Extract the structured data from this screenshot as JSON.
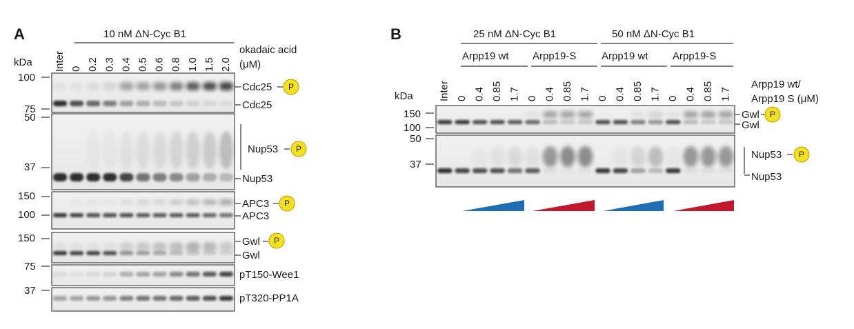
{
  "panelA": {
    "letter": "A",
    "header": "10 nM ΔN-Cyc B1",
    "kda": "kDa",
    "treatment": "okadaic acid",
    "treatment_unit": "(μM)",
    "lanes": [
      "Inter",
      "0",
      "0.2",
      "0.3",
      "0.4",
      "0.5",
      "0.6",
      "0.8",
      "1.0",
      "1.5",
      "2.0"
    ],
    "markers": [
      "100",
      "75",
      "50",
      "37",
      "150",
      "100",
      "150",
      "75",
      "37"
    ],
    "bands": {
      "cdc25": "Cdc25",
      "nup53": "Nup53",
      "apc3": "APC3",
      "gwl": "Gwl",
      "wee1": "pT150-Wee1",
      "pp1a": "pT320-PP1A"
    },
    "phospho": "P"
  },
  "panelB": {
    "letter": "B",
    "header_left": "25 nM ΔN-Cyc B1",
    "header_right": "50 nM ΔN-Cyc B1",
    "sub_wt": "Arpp19 wt",
    "sub_s": "Arpp19-S",
    "kda": "kDa",
    "treatment_1": "Arpp19 wt/",
    "treatment_2": "Arpp19 S (μM)",
    "lanes": [
      "Inter",
      "0",
      "0.4",
      "0.85",
      "1.7",
      "0",
      "0.4",
      "0.85",
      "1.7",
      "0",
      "0.4",
      "0.85",
      "1.7",
      "0",
      "0.4",
      "0.85",
      "1.7"
    ],
    "markers": [
      "150",
      "100",
      "50",
      "37"
    ],
    "bands": {
      "gwl": "Gwl",
      "nup53": "Nup53"
    },
    "phospho": "P",
    "ramp_colors": [
      "#1f6db5",
      "#c0182c",
      "#1f6db5",
      "#c0182c"
    ]
  }
}
